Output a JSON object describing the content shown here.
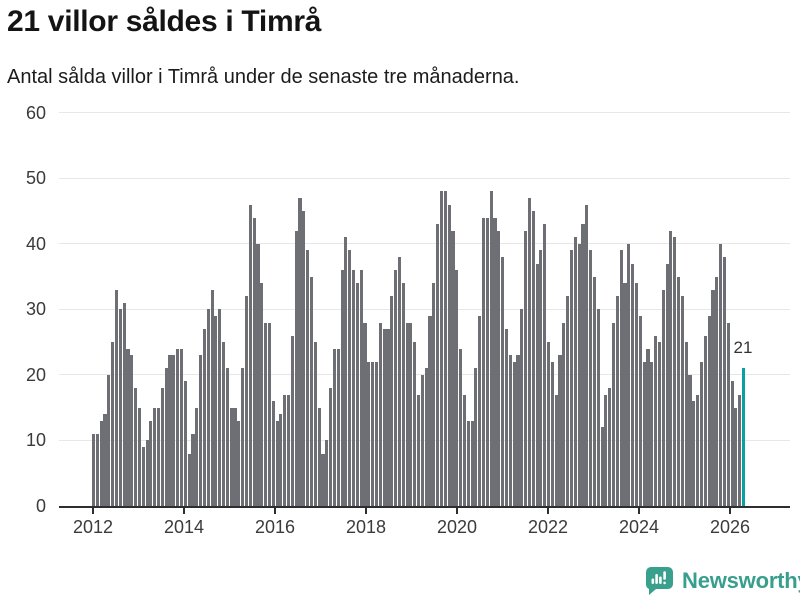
{
  "header": {
    "title": "21 villor såldes i Timrå",
    "subtitle": "Antal sålda villor i Timrå under de senaste tre månaderna."
  },
  "chart_data": {
    "type": "bar",
    "title": "21 villor såldes i Timrå",
    "subtitle": "Antal sålda villor i Timrå under de senaste tre månaderna.",
    "x_period": "monthly",
    "x_first_month": "2011-12",
    "x_last_month": "2026-02",
    "values": [
      11,
      11,
      13,
      14,
      20,
      25,
      33,
      30,
      31,
      24,
      23,
      18,
      15,
      9,
      10,
      13,
      15,
      15,
      18,
      21,
      23,
      23,
      24,
      24,
      19,
      8,
      11,
      15,
      23,
      27,
      30,
      33,
      29,
      30,
      25,
      21,
      15,
      15,
      13,
      21,
      32,
      46,
      44,
      40,
      34,
      28,
      28,
      16,
      13,
      14,
      17,
      17,
      26,
      42,
      47,
      45,
      39,
      35,
      25,
      15,
      8,
      10,
      18,
      24,
      24,
      36,
      41,
      39,
      36,
      34,
      36,
      28,
      22,
      22,
      22,
      28,
      27,
      27,
      32,
      36,
      38,
      34,
      28,
      28,
      25,
      17,
      20,
      21,
      29,
      34,
      43,
      48,
      48,
      46,
      42,
      36,
      24,
      17,
      13,
      13,
      21,
      29,
      44,
      44,
      48,
      44,
      42,
      38,
      27,
      23,
      22,
      23,
      30,
      42,
      47,
      45,
      37,
      39,
      43,
      25,
      22,
      17,
      23,
      28,
      32,
      39,
      41,
      40,
      43,
      46,
      39,
      35,
      30,
      12,
      17,
      18,
      28,
      32,
      39,
      34,
      40,
      37,
      34,
      29,
      22,
      24,
      22,
      26,
      25,
      33,
      37,
      42,
      41,
      35,
      32,
      25,
      20,
      16,
      17,
      22,
      26,
      29,
      33,
      35,
      40,
      38,
      28,
      19,
      15,
      17,
      21
    ],
    "highlight_last_bar": true,
    "last_value": 21,
    "last_value_label": "21",
    "y_ticks": [
      0,
      10,
      20,
      30,
      40,
      50,
      60
    ],
    "x_tick_labels": [
      "2012",
      "2014",
      "2016",
      "2018",
      "2020",
      "2022",
      "2024",
      "2026"
    ],
    "ylim": [
      0,
      60
    ],
    "grid": "horizontal",
    "legend": "none",
    "bar_color": "#6d6f75",
    "highlight_color": "#0aa0a2"
  },
  "footer": {
    "brand": "Newsworthy",
    "brand_color": "#389e8d",
    "logo_icon": "speech-bubble-bar-chart-icon"
  }
}
